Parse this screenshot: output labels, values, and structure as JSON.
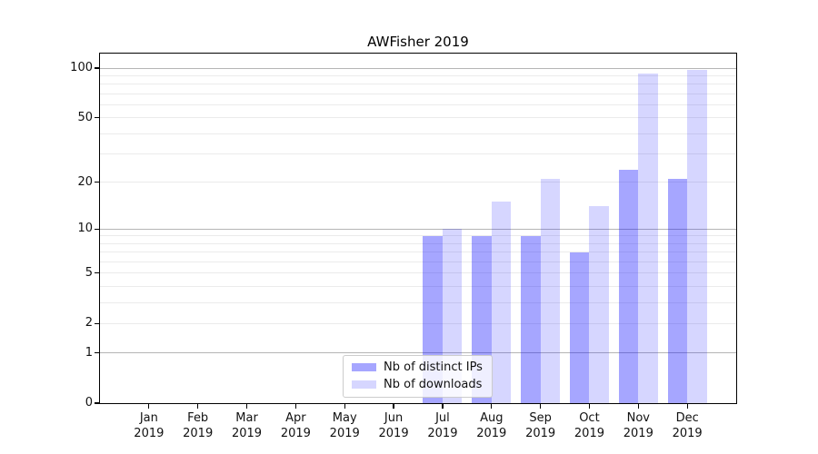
{
  "title": "AWFisher 2019",
  "chart_data": {
    "type": "bar",
    "title": "AWFisher 2019",
    "categories": [
      "Jan",
      "Feb",
      "Mar",
      "Apr",
      "May",
      "Jun",
      "Jul",
      "Aug",
      "Sep",
      "Oct",
      "Nov",
      "Dec"
    ],
    "year": "2019",
    "series": [
      {
        "name": "Nb of distinct IPs",
        "color": "rgba(0,0,255,0.35)",
        "values": [
          0,
          0,
          0,
          0,
          0,
          0,
          9,
          9,
          9,
          7,
          24,
          21
        ]
      },
      {
        "name": "Nb of downloads",
        "color": "rgba(0,0,255,0.16)",
        "values": [
          0,
          0,
          0,
          0,
          0,
          0,
          10,
          15,
          21,
          14,
          93,
          97
        ]
      }
    ],
    "xlabel": "",
    "ylabel": "",
    "yscale": "log1p",
    "ylim": [
      0,
      123
    ],
    "yticks": [
      100,
      50,
      20,
      10,
      5,
      2,
      1,
      0
    ],
    "major_gridlines": [
      1,
      10,
      100
    ],
    "minor_gridlines": [
      2,
      3,
      4,
      5,
      6,
      7,
      8,
      9,
      20,
      30,
      40,
      50,
      60,
      70,
      80,
      90
    ],
    "grid": true,
    "legend_position": "lower center",
    "colors": {
      "major_grid": "#b5b5b5",
      "minor_grid": "#ebebeb",
      "spine": "#000000",
      "bar_dark_over_white": "#a6a6ff",
      "bar_light_over_white": "#d9d9ff"
    }
  }
}
